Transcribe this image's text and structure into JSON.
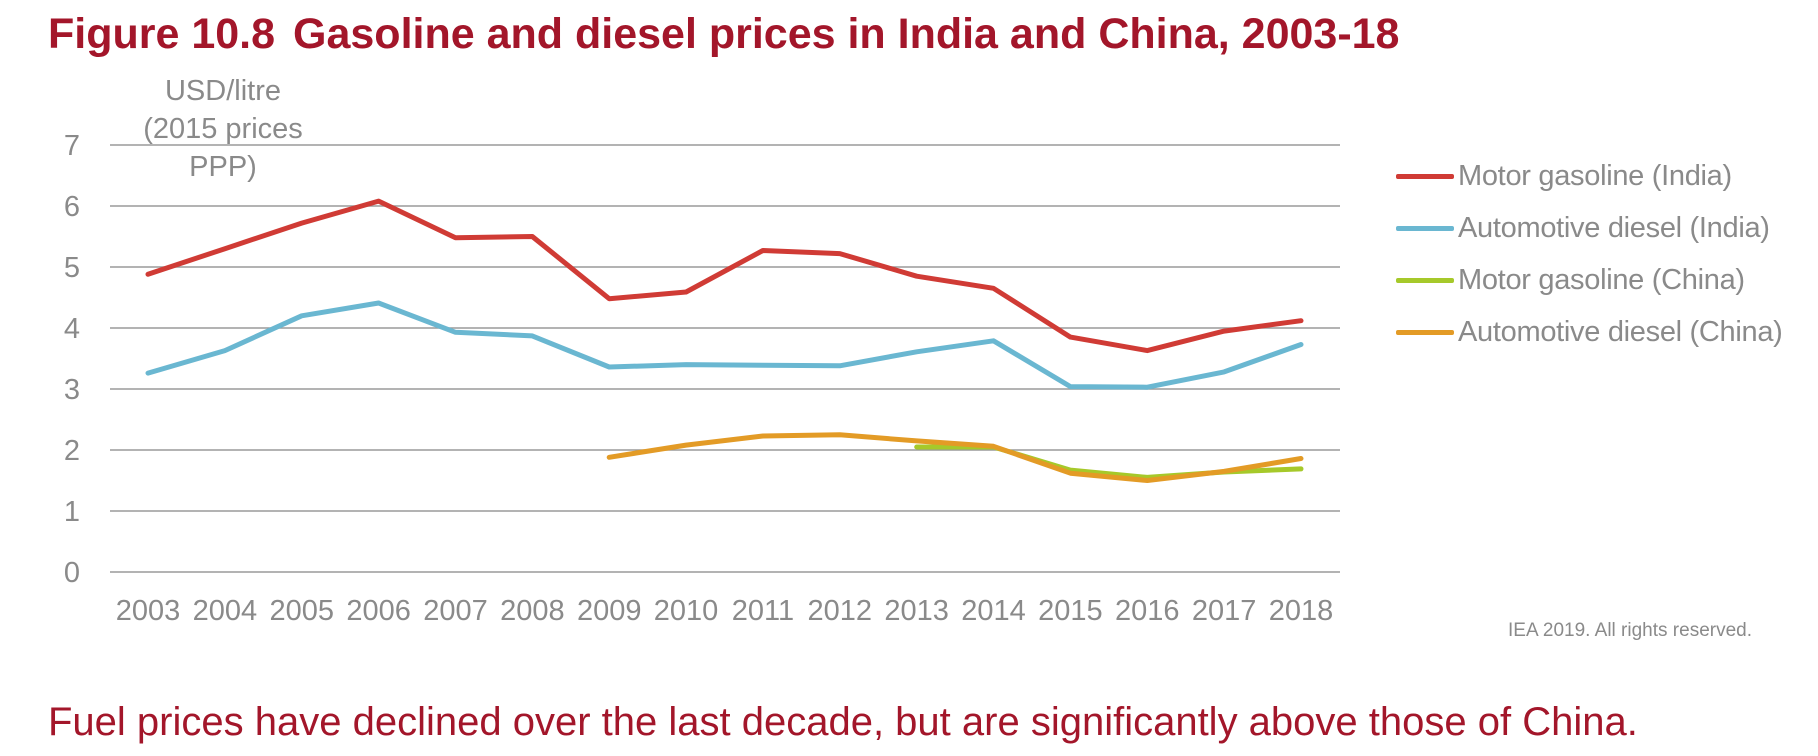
{
  "figure": {
    "number": "Figure 10.8",
    "title": "Gasoline and diesel prices in India and China, 2003-18",
    "caption": "Fuel prices have declined over the last decade, but are significantly above those of China.",
    "credit": "IEA 2019. All rights reserved."
  },
  "chart_data": {
    "type": "line",
    "title": "Gasoline and diesel prices in India and China, 2003-18",
    "ylabel_line1": "USD/litre",
    "ylabel_line2": "(2015 prices PPP)",
    "xlabel": "",
    "ylim": [
      0,
      7
    ],
    "yticks": [
      0,
      1,
      2,
      3,
      4,
      5,
      6,
      7
    ],
    "grid": true,
    "legend_position": "right",
    "categories": [
      "2003",
      "2004",
      "2005",
      "2006",
      "2007",
      "2008",
      "2009",
      "2010",
      "2011",
      "2012",
      "2013",
      "2014",
      "2015",
      "2016",
      "2017",
      "2018"
    ],
    "series": [
      {
        "name": "Motor gasoline (India)",
        "color": "#d03b35",
        "values": [
          4.88,
          5.3,
          5.72,
          6.08,
          5.48,
          5.5,
          4.48,
          4.59,
          5.27,
          5.22,
          4.85,
          4.65,
          3.85,
          3.63,
          3.95,
          4.12
        ]
      },
      {
        "name": "Automotive diesel (India)",
        "color": "#6ab7d1",
        "values": [
          3.26,
          3.63,
          4.2,
          4.41,
          3.93,
          3.87,
          3.36,
          3.4,
          3.39,
          3.38,
          3.61,
          3.79,
          3.04,
          3.03,
          3.28,
          3.73
        ]
      },
      {
        "name": "Motor gasoline (China)",
        "color": "#a6c92a",
        "values": [
          null,
          null,
          null,
          null,
          null,
          null,
          null,
          null,
          null,
          null,
          2.05,
          2.05,
          1.67,
          1.55,
          1.64,
          1.69
        ]
      },
      {
        "name": "Automotive diesel (China)",
        "color": "#e39b26",
        "values": [
          null,
          null,
          null,
          null,
          null,
          null,
          1.88,
          2.08,
          2.23,
          2.25,
          2.15,
          2.06,
          1.62,
          1.5,
          1.65,
          1.86
        ]
      }
    ]
  }
}
